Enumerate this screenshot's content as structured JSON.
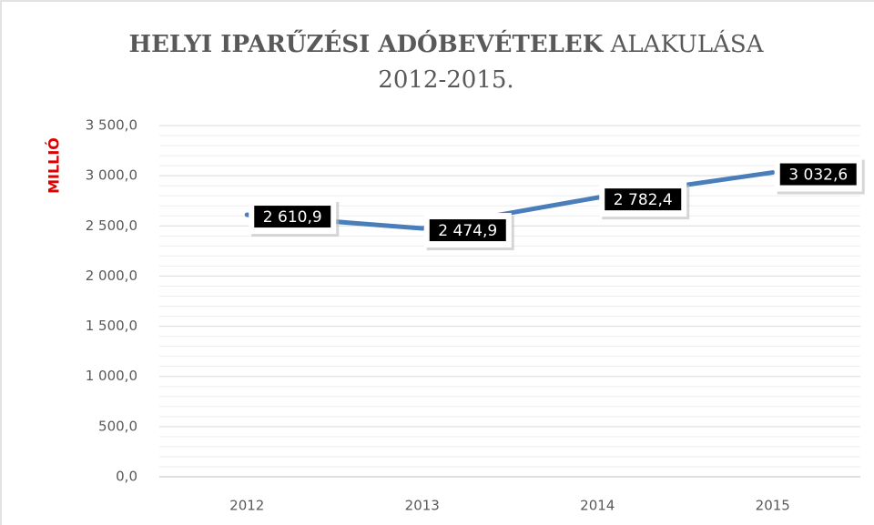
{
  "chart_data": {
    "type": "line",
    "title": [
      "HELYI IPARŰZÉSI ADÓBEVÉTELEK",
      "ALAKULÁSA",
      "2012-2015."
    ],
    "ylabel": "MILLIÓ",
    "categories": [
      "2012",
      "2013",
      "2014",
      "2015"
    ],
    "series": [
      {
        "name": null,
        "color": "#4a7ebb",
        "values": [
          2610.9,
          2474.9,
          2782.4,
          3032.6
        ],
        "value_labels": [
          "2 610,9",
          "2 474,9",
          "2 782,4",
          "3 032,6"
        ]
      }
    ],
    "ylim": [
      0,
      3500
    ],
    "yticks": [
      {
        "value": 0,
        "label": "0,0"
      },
      {
        "value": 500,
        "label": "500,0"
      },
      {
        "value": 1000,
        "label": "1 000,0"
      },
      {
        "value": 1500,
        "label": "1 500,0"
      },
      {
        "value": 2000,
        "label": "2 000,0"
      },
      {
        "value": 2500,
        "label": "2 500,0"
      },
      {
        "value": 3000,
        "label": "3 000,0"
      },
      {
        "value": 3500,
        "label": "3 500,0"
      }
    ],
    "grid": true
  }
}
